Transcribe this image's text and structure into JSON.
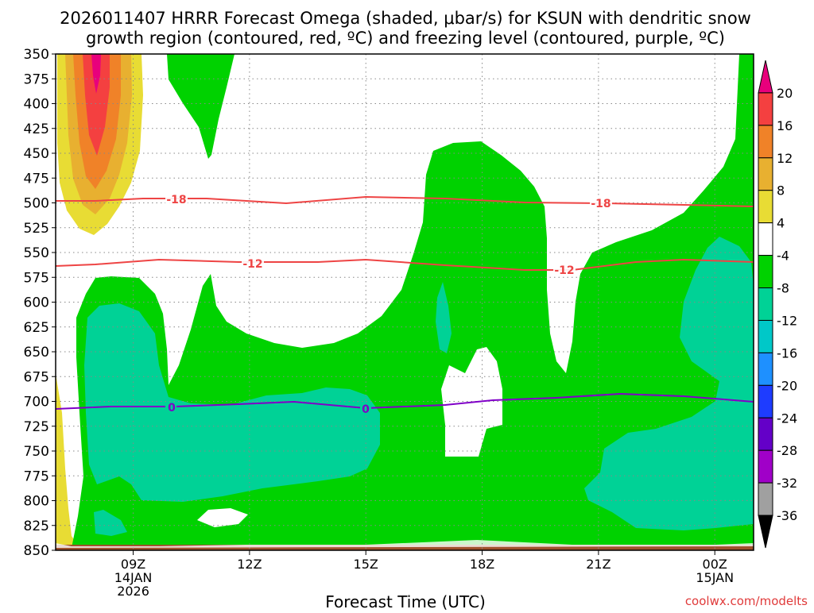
{
  "chart_data": {
    "type": "contour",
    "title_line1": "2026011407 HRRR Forecast Omega (shaded, μbar/s) for KSUN with dendritic snow",
    "title_line2": "growth region (contoured, red, ºC) and freezing level (contoured, purple, ºC)",
    "xlabel": "Forecast Time (UTC)",
    "ylabel": "",
    "y_axis": {
      "scale": "pressure (hPa), increasing downward",
      "range": [
        350,
        850
      ],
      "ticks": [
        "350",
        "375",
        "400",
        "425",
        "450",
        "475",
        "500",
        "525",
        "550",
        "575",
        "600",
        "625",
        "650",
        "675",
        "700",
        "725",
        "750",
        "775",
        "800",
        "825",
        "850"
      ]
    },
    "x_axis": {
      "range": [
        "2026-01-14 07Z",
        "2026-01-15 01Z"
      ],
      "ticks": [
        {
          "label": "09Z",
          "sub1": "14JAN",
          "sub2": "2026"
        },
        {
          "label": "12Z",
          "sub1": "",
          "sub2": ""
        },
        {
          "label": "15Z",
          "sub1": "",
          "sub2": ""
        },
        {
          "label": "18Z",
          "sub1": "",
          "sub2": ""
        },
        {
          "label": "21Z",
          "sub1": "",
          "sub2": ""
        },
        {
          "label": "00Z",
          "sub1": "15JAN",
          "sub2": ""
        }
      ],
      "grid": "dotted"
    },
    "colorbar": {
      "labels": [
        "20",
        "16",
        "12",
        "8",
        "4",
        "-4",
        "-8",
        "-12",
        "-16",
        "-20",
        "-24",
        "-28",
        "-32",
        "-36"
      ],
      "colors": [
        "#e8007c",
        "#f44040",
        "#f08228",
        "#e8b030",
        "#e8dc34",
        "#ffffff",
        "#00d200",
        "#00d296",
        "#00c8c8",
        "#1e90ff",
        "#1e3cff",
        "#6400c8",
        "#a000c8",
        "#a0a0a0",
        "#000000"
      ]
    },
    "contours": [
      {
        "name": "dendritic snow growth",
        "color": "#ee4444",
        "labels": [
          "-18",
          "-12"
        ],
        "values": [
          -18,
          -12
        ]
      },
      {
        "name": "freezing level",
        "color": "#8000c8",
        "labels": [
          "0"
        ],
        "values": [
          0
        ]
      }
    ],
    "watermark": "coolwx.com/modelts"
  }
}
